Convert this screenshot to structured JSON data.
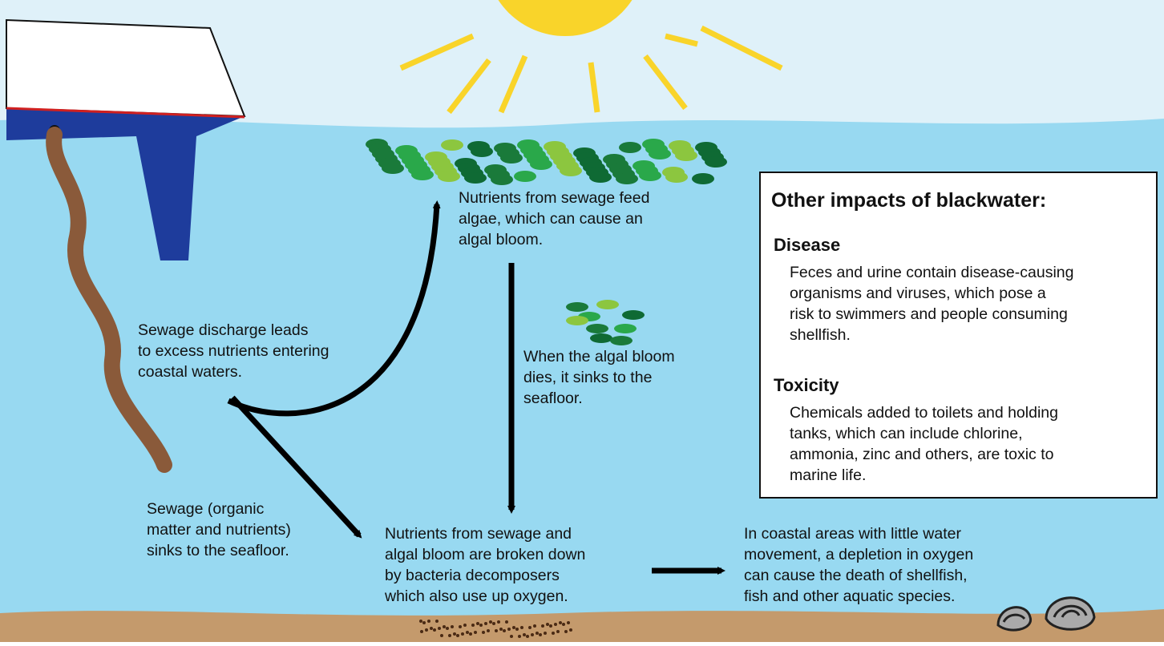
{
  "labels": {
    "algae_feed": [
      "Nutrients from sewage feed",
      "algae, which can cause an",
      "algal bloom."
    ],
    "sewage_discharge": [
      "Sewage discharge leads",
      "to excess nutrients entering",
      "coastal waters."
    ],
    "bloom_dies": [
      "When the algal bloom",
      "dies, it sinks to the",
      "seafloor."
    ],
    "sewage_sinks": [
      "Sewage (organic",
      "matter and nutrients)",
      "sinks to the seafloor."
    ],
    "decomposers": [
      "Nutrients from sewage and",
      "algal bloom are broken down",
      "by bacteria decomposers",
      "which also use up oxygen."
    ],
    "oxygen_depletion": [
      "In coastal areas with little water",
      "movement, a depletion in oxygen",
      "can cause the death of shellfish,",
      "fish and other aquatic species."
    ]
  },
  "impacts_box": {
    "title": "Other impacts of blackwater:",
    "sections": [
      {
        "heading": "Disease",
        "lines": [
          "Feces and urine contain disease-causing",
          "organisms and viruses, which pose a",
          "risk to swimmers and people consuming",
          "shellfish."
        ]
      },
      {
        "heading": "Toxicity",
        "lines": [
          "Chemicals added to toilets and holding",
          "tanks, which can include chlorine,",
          "ammonia, zinc and others, are toxic to",
          "marine life."
        ]
      }
    ]
  }
}
